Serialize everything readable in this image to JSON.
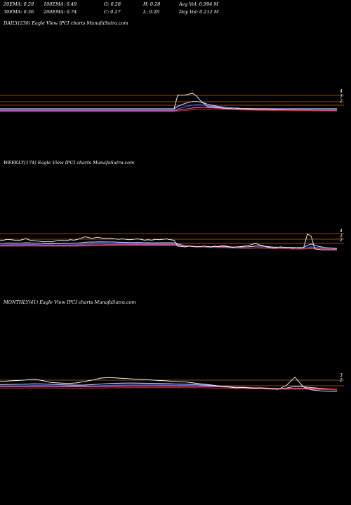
{
  "stats": {
    "row1": [
      "20EMA: 0.29",
      "100EMA: 0.49",
      "O: 0.28",
      "H: 0.28",
      "Avg Vol: 0.994  M"
    ],
    "row2": [
      "30EMA: 0.36",
      "200EMA: 0.74",
      "C: 0.27",
      "L: 0.26",
      "Day Vol: 0.212  M"
    ]
  },
  "colors": {
    "background": "#000000",
    "price": "#ffffff",
    "ref_line": "#b8640f",
    "ema_blue": "#2b6cff",
    "ema_pink": "#e060c0",
    "ema_red": "#d02020",
    "ema_light": "#c8c8ff"
  },
  "chart_data": [
    {
      "type": "line",
      "title": "DAILY(230) Eagle   View  IPCI charts MunafaSutra.com",
      "y_ticks": [
        "4",
        "3",
        "2"
      ],
      "price_values": [
        0.27,
        0.27,
        0.27,
        0.27,
        0.27,
        0.27,
        0.27,
        0.27,
        0.27,
        0.27,
        0.27,
        0.27,
        0.27,
        0.27,
        0.27,
        0.27,
        0.27,
        0.27,
        0.27,
        0.27,
        0.27,
        0.27,
        0.27,
        0.27,
        0.27,
        0.27,
        0.27,
        0.27,
        0.27,
        0.27,
        0.27,
        0.27,
        0.27,
        0.27,
        0.27,
        0.27,
        0.27,
        0.27,
        0.27,
        0.27,
        0.27,
        0.27,
        0.27,
        0.27,
        0.27,
        0.27,
        0.27,
        0.27,
        3.6,
        3.55,
        3.6,
        3.8,
        4.0,
        3.4,
        2.4,
        1.6,
        0.9,
        0.8,
        0.7,
        0.6,
        0.5,
        0.4,
        0.4,
        0.3,
        0.35,
        0.3,
        0.27,
        0.3,
        0.27,
        0.25,
        0.27,
        0.27,
        0.3,
        0.27,
        0.25,
        0.27,
        0.27,
        0.27,
        0.27,
        0.27,
        0.27,
        0.27,
        0.27,
        0.27,
        0.27,
        0.27,
        0.27,
        0.27,
        0.27,
        0.27,
        0.27,
        0.27
      ]
    },
    {
      "type": "line",
      "title": "WEEKLY(174) Eagle   View  IPCI charts MunafaSutra.com",
      "y_ticks": [
        "4",
        "3",
        "2"
      ],
      "price_values": [
        2.5,
        2.6,
        2.8,
        2.7,
        2.6,
        2.5,
        2.7,
        3.0,
        2.6,
        2.5,
        2.4,
        2.3,
        2.2,
        2.3,
        2.2,
        2.4,
        2.6,
        2.5,
        2.5,
        2.7,
        2.6,
        2.8,
        3.1,
        3.4,
        3.2,
        3.0,
        3.3,
        3.2,
        3.0,
        3.1,
        3.0,
        2.9,
        2.8,
        2.9,
        2.8,
        2.7,
        2.8,
        2.9,
        2.8,
        2.6,
        2.7,
        2.6,
        2.8,
        2.7,
        2.8,
        2.9,
        2.7,
        2.6,
        1.2,
        1.1,
        1.0,
        1.2,
        1.1,
        1.0,
        1.1,
        1.2,
        1.1,
        1.0,
        1.2,
        1.1,
        1.3,
        1.2,
        1.0,
        0.9,
        1.0,
        1.1,
        1.2,
        1.3,
        1.6,
        1.8,
        1.5,
        1.3,
        1.0,
        0.8,
        0.7,
        0.9,
        1.0,
        0.8,
        0.9,
        0.7,
        0.8,
        0.7,
        0.8,
        4.0,
        3.6,
        0.5,
        0.4,
        0.3,
        0.3,
        0.3,
        0.3,
        0.27
      ]
    },
    {
      "type": "line",
      "title": "MONTHLY(41) Eagle   View  IPCI charts MunafaSutra.com",
      "y_ticks": [
        "3",
        "2"
      ],
      "price_values": [
        2.3,
        2.4,
        2.5,
        2.6,
        2.8,
        2.5,
        2.1,
        2.0,
        1.9,
        2.0,
        2.3,
        2.6,
        3.0,
        3.1,
        3.0,
        2.9,
        2.8,
        2.7,
        2.6,
        2.5,
        2.4,
        2.3,
        2.2,
        2.0,
        1.8,
        1.6,
        1.4,
        1.2,
        1.0,
        1.1,
        0.9,
        1.0,
        0.8,
        0.7,
        1.5,
        3.2,
        1.2,
        0.6,
        0.4,
        0.3,
        0.27
      ]
    }
  ]
}
